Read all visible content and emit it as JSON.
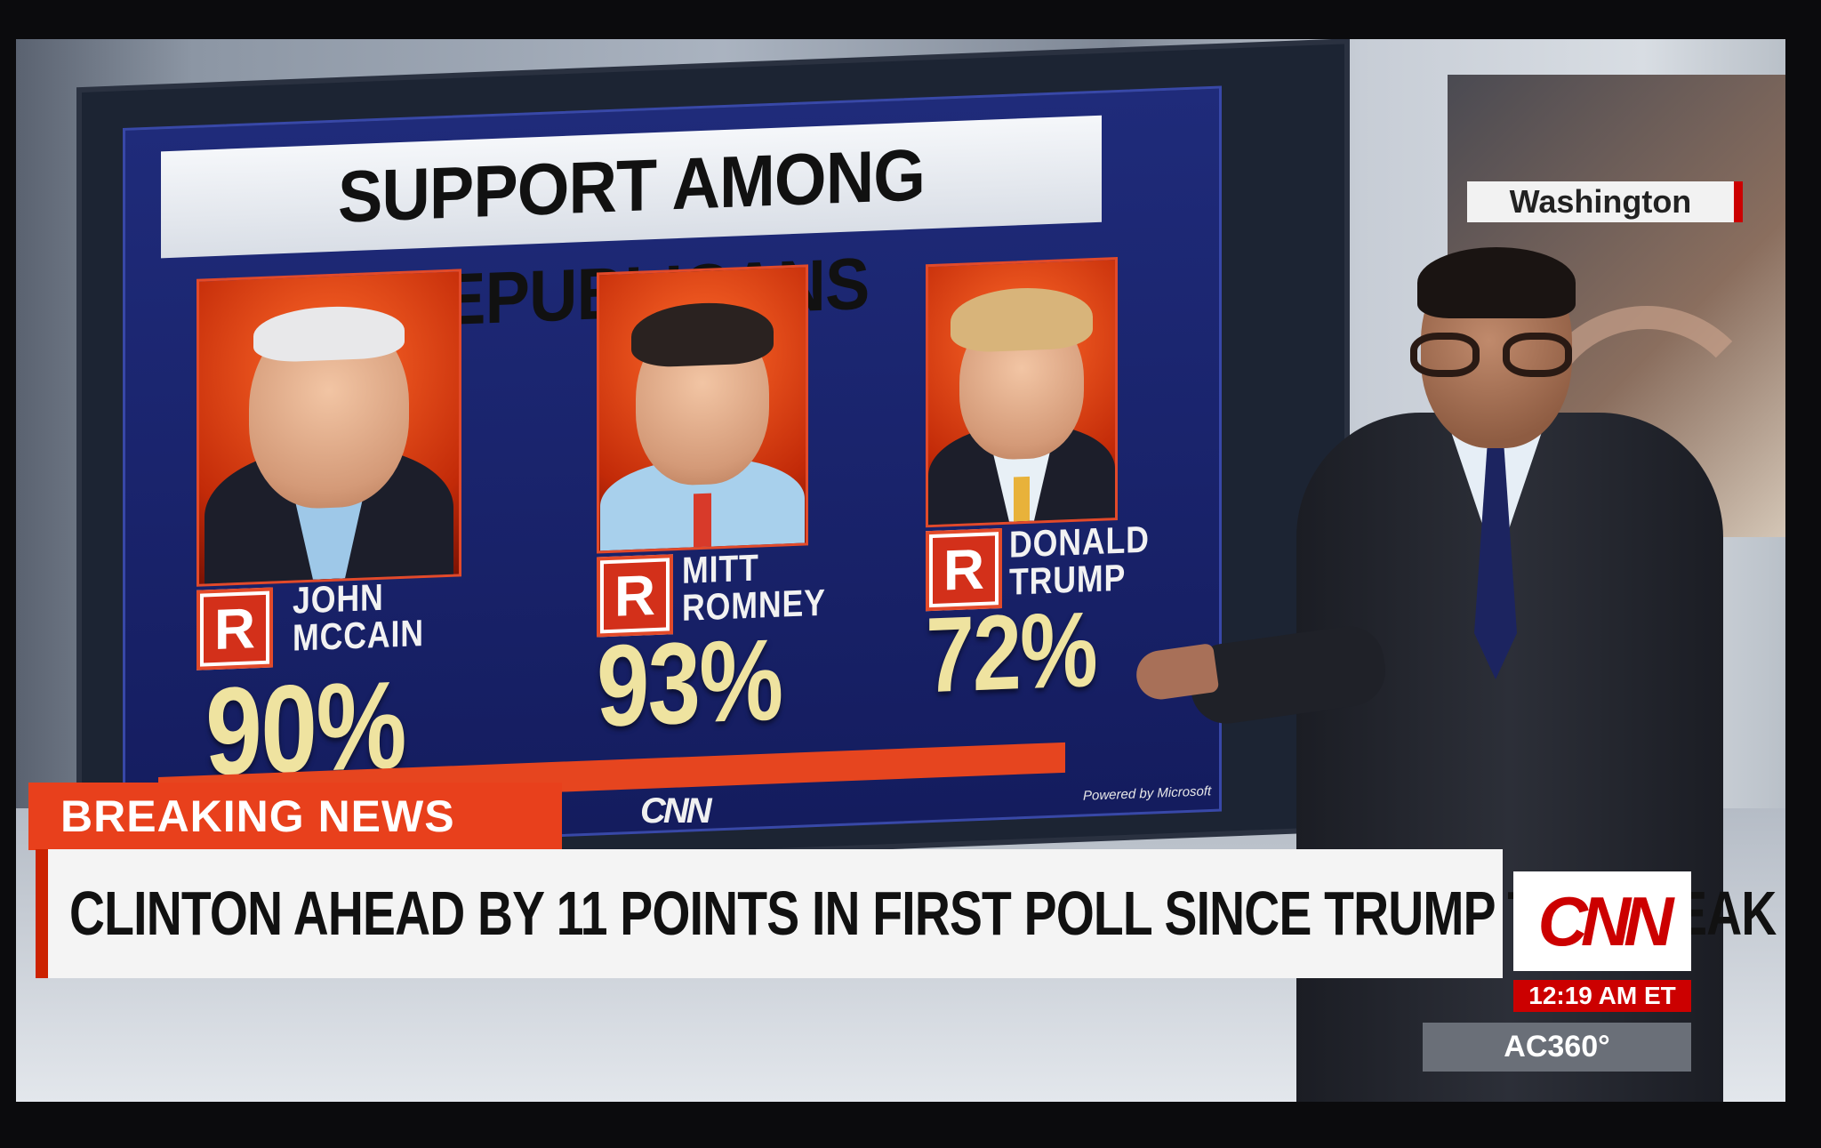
{
  "graphic": {
    "title": "SUPPORT AMONG REPUBLICANS",
    "powered_by": "Powered by Microsoft",
    "candidates": [
      {
        "party": "R",
        "first_name": "JOHN",
        "last_name": "MCCAIN",
        "percent": "90%"
      },
      {
        "party": "R",
        "first_name": "MITT",
        "last_name": "ROMNEY",
        "percent": "93%"
      },
      {
        "party": "R",
        "first_name": "DONALD",
        "last_name": "TRUMP",
        "percent": "72%"
      }
    ]
  },
  "lower_third": {
    "location": "Washington",
    "breaking_label": "BREAKING NEWS",
    "headline": "CLINTON AHEAD BY 11 POINTS IN FIRST POLL SINCE TRUMP TAPE LEAK",
    "network_logo": "CNN",
    "watermark": "CNN",
    "time": "12:19 AM ET",
    "show": "AC360°"
  },
  "colors": {
    "accent_red": "#cc0000",
    "breaking_orange": "#e8401c",
    "graphic_blue": "#1f2b7a",
    "percent_gold": "#efe3a0"
  }
}
